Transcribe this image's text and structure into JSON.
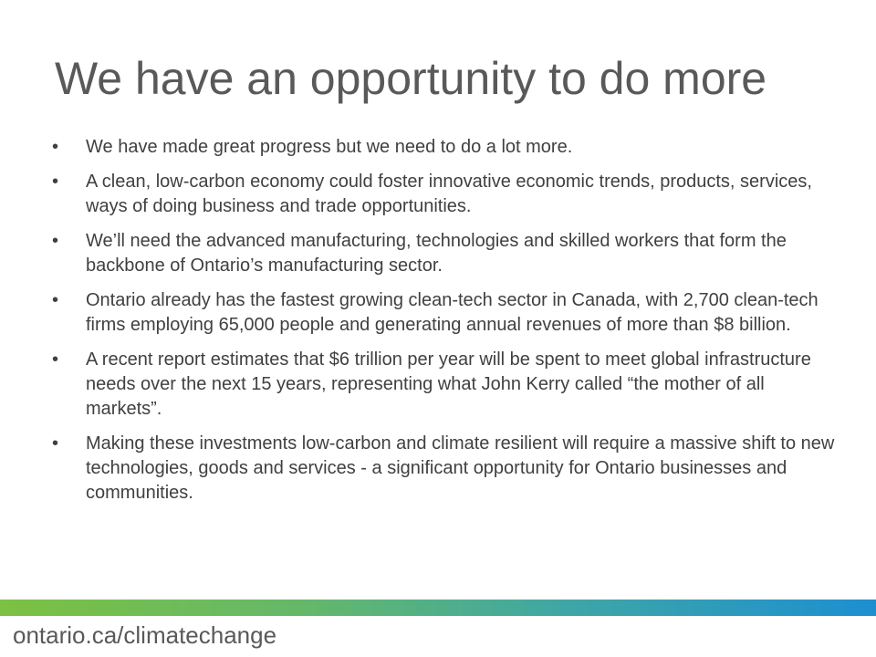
{
  "slide": {
    "title": "We have an opportunity to do more",
    "bullet_symbol": "•",
    "bullets": [
      "We have made great progress but we need to do a lot more.",
      "A clean, low-carbon economy could foster innovative economic trends, products, services, ways of doing business and trade opportunities.",
      "We’ll need the advanced manufacturing, technologies and skilled workers that form the backbone of Ontario’s manufacturing sector.",
      "Ontario already has the fastest growing clean-tech sector in Canada, with 2,700 clean-tech firms employing 65,000 people and generating annual revenues of more than $8 billion.",
      "A recent report estimates that $6 trillion per year will be spent to meet global infrastructure needs over the next 15 years, representing what John Kerry called “the mother of all markets”.",
      "Making these investments low-carbon and climate resilient will require a massive shift to new technologies, goods and services - a significant opportunity for Ontario businesses and communities."
    ]
  },
  "footer": {
    "url": "ontario.ca/climatechange"
  },
  "colors": {
    "title_text": "#595959",
    "body_text": "#404040",
    "gradient_start": "#7cc142",
    "gradient_end": "#1d8fd1"
  }
}
